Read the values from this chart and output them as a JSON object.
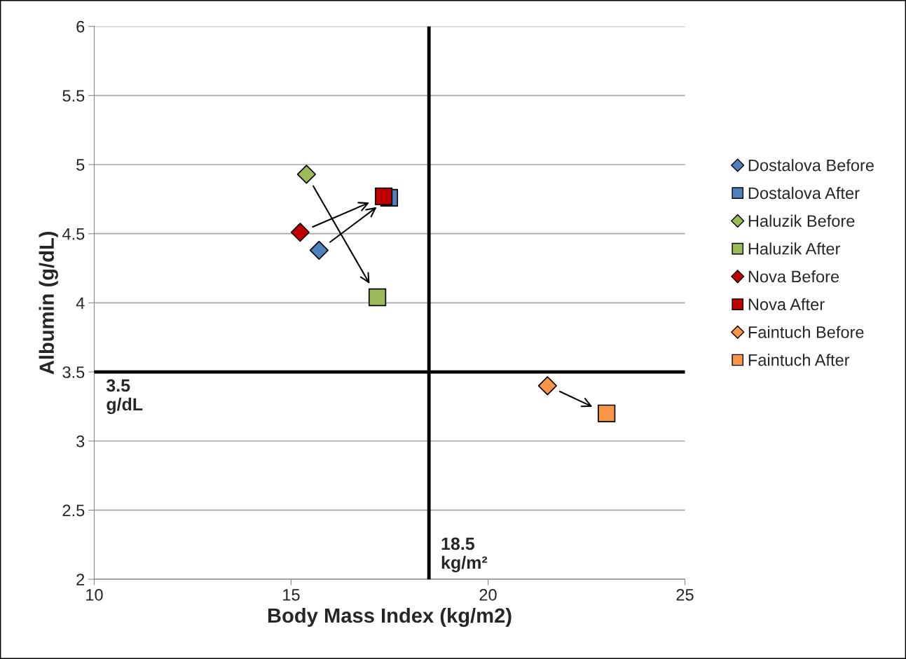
{
  "chart_data": {
    "type": "scatter",
    "xlabel": "Body Mass Index (kg/m2)",
    "ylabel": "Albumin (g/dL)",
    "xlim": [
      10,
      25
    ],
    "xticks": [
      10,
      15,
      20,
      25
    ],
    "ylim": [
      2,
      6
    ],
    "yticks": [
      2,
      2.5,
      3,
      3.5,
      4,
      4.5,
      5,
      5.5,
      6
    ],
    "grid": "y",
    "legend": "right",
    "series": [
      {
        "name": "Dostalova Before",
        "color": "#4f81bd",
        "marker": "diamond",
        "x": [
          15.71
        ],
        "values": [
          4.38
        ]
      },
      {
        "name": "Dostalova After",
        "color": "#4f81bd",
        "marker": "square",
        "x": [
          17.49
        ],
        "values": [
          4.76
        ]
      },
      {
        "name": "Haluzik Before",
        "color": "#9bbb59",
        "marker": "diamond",
        "x": [
          15.39
        ],
        "values": [
          4.93
        ]
      },
      {
        "name": "Haluzik After",
        "color": "#9bbb59",
        "marker": "square",
        "x": [
          17.19
        ],
        "values": [
          4.04
        ]
      },
      {
        "name": "Nova Before",
        "color": "#c00000",
        "marker": "diamond",
        "x": [
          15.23
        ],
        "values": [
          4.51
        ]
      },
      {
        "name": "Nova After",
        "color": "#c00000",
        "marker": "square",
        "x": [
          17.35
        ],
        "values": [
          4.77
        ]
      },
      {
        "name": "Faintuch Before",
        "color": "#f79646",
        "marker": "diamond",
        "x": [
          21.51
        ],
        "values": [
          3.4
        ]
      },
      {
        "name": "Faintuch After",
        "color": "#f79646",
        "marker": "square",
        "x": [
          23.01
        ],
        "values": [
          3.2
        ]
      }
    ],
    "ref_lines": [
      {
        "axis": "x",
        "value": 18.5,
        "label": "18.5\nkg/m²",
        "color": "#000000"
      },
      {
        "axis": "y",
        "value": 3.5,
        "label": "3.5\ng/dL",
        "color": "#000000"
      }
    ]
  }
}
